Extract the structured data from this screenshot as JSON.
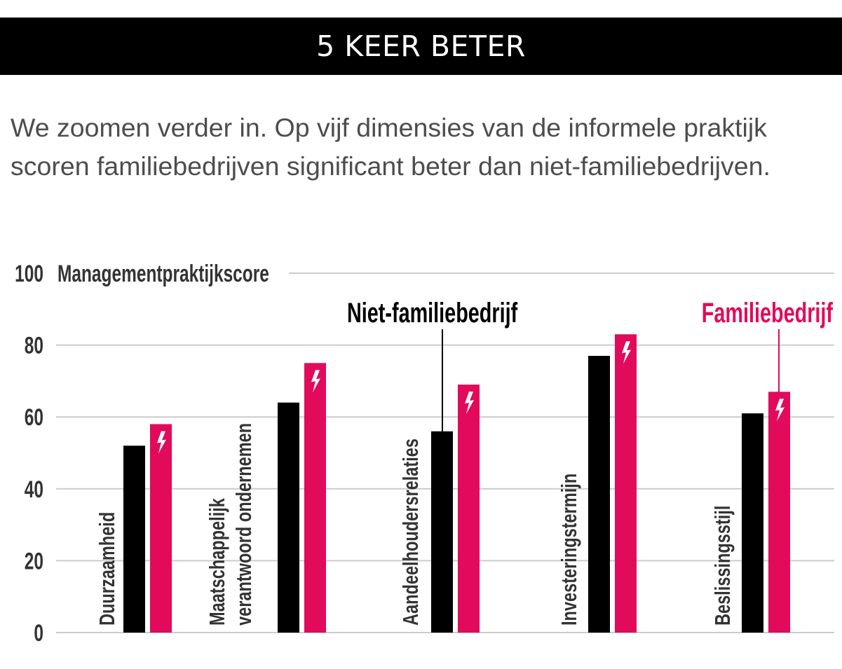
{
  "banner": {
    "title": "5 KEER BETER"
  },
  "intro": {
    "text": "We zoomen verder in. Op vijf dimensies van de informele praktijk scoren familiebedrijven significant beter dan niet-familiebedrijven."
  },
  "colors": {
    "niet_familie": "#000000",
    "familie": "#E20A5B",
    "grid": "#cccccc"
  },
  "chart_data": {
    "type": "bar",
    "ylabel": "Managementpraktijkscore",
    "ylim": [
      0,
      100
    ],
    "yticks": [
      "0",
      "20",
      "40",
      "60",
      "80",
      "100"
    ],
    "categories": [
      "Duurzaamheid",
      "Maatschappelijk verantwoord ondernemen",
      "Aandeelhoudersrelaties",
      "Investeringstermijn",
      "Beslissingsstijl"
    ],
    "category_lines": [
      [
        "Duurzaamheid"
      ],
      [
        "Maatschappelijk",
        "verantwoord ondernemen"
      ],
      [
        "Aandeelhoudersrelaties"
      ],
      [
        "Investeringstermijn"
      ],
      [
        "Beslissingsstijl"
      ]
    ],
    "series": [
      {
        "name": "Niet-familiebedrijf",
        "values": [
          52,
          64,
          56,
          77,
          61
        ]
      },
      {
        "name": "Familiebedrijf",
        "values": [
          58,
          75,
          69,
          83,
          67
        ]
      }
    ],
    "significance_icon": "lightning-bolt-icon",
    "grid": true,
    "legend": "annotations above bars"
  }
}
